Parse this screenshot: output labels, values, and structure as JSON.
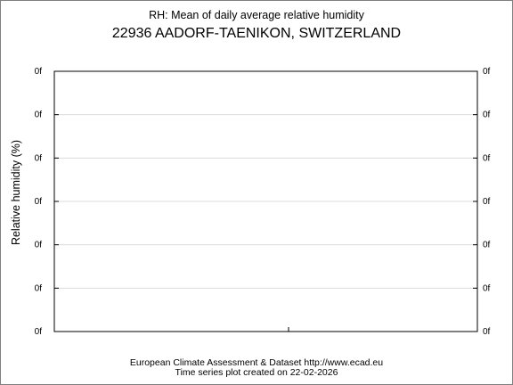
{
  "chart_data": {
    "type": "line",
    "title": "RH: Mean of daily average relative humidity",
    "subtitle": "22936 AADORF-TAENIKON, SWITZERLAND",
    "xlabel": "",
    "ylabel": "Relative humidity (%)",
    "y_ticks": [
      "0f",
      "0f",
      "0f",
      "0f",
      "0f",
      "0f",
      "0f"
    ],
    "x_ticks": [],
    "series": [],
    "grid": true,
    "right_axis_ticks": true
  },
  "footer": {
    "line1": "European Climate Assessment & Dataset  http://www.ecad.eu",
    "line2": "Time series plot created on 22-02-2026"
  }
}
